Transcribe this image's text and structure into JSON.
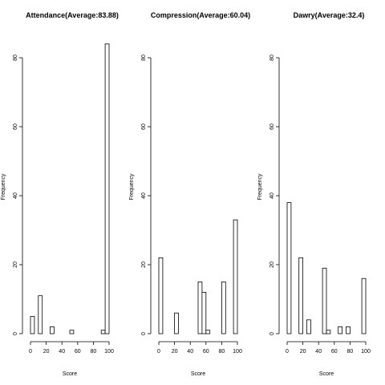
{
  "chart_data": [
    {
      "type": "bar",
      "title": "Attendance(Average:83.88)",
      "xlabel": "Score",
      "ylabel": "Frequency",
      "xlim": [
        0,
        100
      ],
      "ylim": [
        0,
        80
      ],
      "x_ticks": [
        "0",
        "20",
        "40",
        "60",
        "80",
        "100"
      ],
      "y_ticks": [
        "0",
        "20",
        "40",
        "60",
        "80"
      ],
      "bin_width": 5,
      "bins": [
        [
          0,
          5
        ],
        [
          5,
          10
        ],
        [
          10,
          15
        ],
        [
          15,
          20
        ],
        [
          20,
          25
        ],
        [
          25,
          30
        ],
        [
          30,
          35
        ],
        [
          35,
          40
        ],
        [
          40,
          45
        ],
        [
          45,
          50
        ],
        [
          50,
          55
        ],
        [
          55,
          60
        ],
        [
          60,
          65
        ],
        [
          65,
          70
        ],
        [
          70,
          75
        ],
        [
          75,
          80
        ],
        [
          80,
          85
        ],
        [
          85,
          90
        ],
        [
          90,
          95
        ],
        [
          95,
          100
        ]
      ],
      "values": [
        5,
        0,
        11,
        0,
        0,
        2,
        0,
        0,
        0,
        0,
        1,
        0,
        0,
        0,
        0,
        0,
        0,
        0,
        1,
        84
      ]
    },
    {
      "type": "bar",
      "title": "Compression(Average:60.04)",
      "xlabel": "Score",
      "ylabel": "Frequency",
      "xlim": [
        0,
        100
      ],
      "ylim": [
        0,
        80
      ],
      "x_ticks": [
        "0",
        "20",
        "40",
        "60",
        "80",
        "100"
      ],
      "y_ticks": [
        "0",
        "20",
        "40",
        "60",
        "80"
      ],
      "bin_width": 5,
      "bins": [
        [
          0,
          5
        ],
        [
          5,
          10
        ],
        [
          10,
          15
        ],
        [
          15,
          20
        ],
        [
          20,
          25
        ],
        [
          25,
          30
        ],
        [
          30,
          35
        ],
        [
          35,
          40
        ],
        [
          40,
          45
        ],
        [
          45,
          50
        ],
        [
          50,
          55
        ],
        [
          55,
          60
        ],
        [
          60,
          65
        ],
        [
          65,
          70
        ],
        [
          70,
          75
        ],
        [
          75,
          80
        ],
        [
          80,
          85
        ],
        [
          85,
          90
        ],
        [
          90,
          95
        ],
        [
          95,
          100
        ]
      ],
      "values": [
        22,
        0,
        0,
        0,
        6,
        0,
        0,
        0,
        0,
        0,
        15,
        12,
        1,
        0,
        0,
        0,
        15,
        0,
        0,
        33
      ]
    },
    {
      "type": "bar",
      "title": "Dawry(Average:32.4)",
      "xlabel": "Score",
      "ylabel": "Frequency",
      "xlim": [
        0,
        100
      ],
      "ylim": [
        0,
        80
      ],
      "x_ticks": [
        "0",
        "20",
        "40",
        "60",
        "80",
        "100"
      ],
      "y_ticks": [
        "0",
        "20",
        "40",
        "60",
        "80"
      ],
      "bin_width": 5,
      "bins": [
        [
          0,
          5
        ],
        [
          5,
          10
        ],
        [
          10,
          15
        ],
        [
          15,
          20
        ],
        [
          20,
          25
        ],
        [
          25,
          30
        ],
        [
          30,
          35
        ],
        [
          35,
          40
        ],
        [
          40,
          45
        ],
        [
          45,
          50
        ],
        [
          50,
          55
        ],
        [
          55,
          60
        ],
        [
          60,
          65
        ],
        [
          65,
          70
        ],
        [
          70,
          75
        ],
        [
          75,
          80
        ],
        [
          80,
          85
        ],
        [
          85,
          90
        ],
        [
          90,
          95
        ],
        [
          95,
          100
        ]
      ],
      "values": [
        38,
        0,
        0,
        22,
        0,
        4,
        0,
        0,
        0,
        19,
        1,
        0,
        0,
        2,
        0,
        2,
        0,
        0,
        0,
        16
      ]
    }
  ]
}
